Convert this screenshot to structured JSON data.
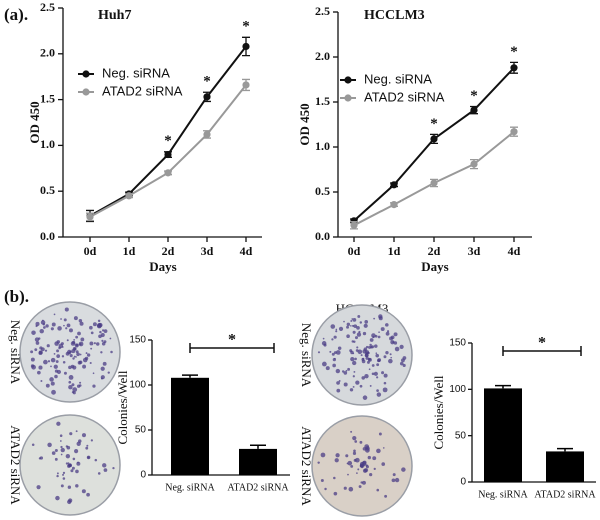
{
  "panel_labels": [
    "(a).",
    "(b)."
  ],
  "colony_plates": [
    {
      "title": "Huh7",
      "rows": [
        "Neg. siRNA",
        "ATAD2 siRNA"
      ]
    },
    {
      "title": "HCCLM3",
      "rows": [
        "Neg. siRNA",
        "ATAD2 siRNA"
      ]
    }
  ],
  "chart_data": [
    {
      "type": "line",
      "title": "Huh7",
      "x_label": "Days",
      "y_label": "OD 450",
      "categories": [
        "0d",
        "1d",
        "2d",
        "3d",
        "4d"
      ],
      "series": [
        {
          "name": "Neg. siRNA",
          "color": "#111111",
          "values": [
            0.23,
            0.47,
            0.9,
            1.53,
            2.08
          ],
          "errors": [
            0.06,
            0.02,
            0.03,
            0.05,
            0.1
          ]
        },
        {
          "name": "ATAD2 siRNA",
          "color": "#999999",
          "values": [
            0.22,
            0.45,
            0.7,
            1.12,
            1.66
          ],
          "errors": [
            0.04,
            0.02,
            0.02,
            0.04,
            0.06
          ]
        }
      ],
      "significance": [
        null,
        null,
        "*",
        "*",
        "*"
      ],
      "ylim": [
        0,
        2.5
      ],
      "yticks": [
        {
          "value": 0,
          "label": "0.0"
        },
        0.5,
        {
          "value": 1,
          "label": "1.0"
        },
        1.5,
        {
          "value": 2,
          "label": "2.0"
        },
        2.5
      ]
    },
    {
      "type": "line",
      "title": "HCCLM3",
      "x_label": "Days",
      "y_label": "OD 450",
      "categories": [
        "0d",
        "1d",
        "2d",
        "3d",
        "4d"
      ],
      "series": [
        {
          "name": "Neg. siRNA",
          "color": "#111111",
          "values": [
            0.18,
            0.58,
            1.09,
            1.41,
            1.88
          ],
          "errors": [
            0.02,
            0.02,
            0.05,
            0.04,
            0.06
          ]
        },
        {
          "name": "ATAD2 siRNA",
          "color": "#999999",
          "values": [
            0.13,
            0.36,
            0.6,
            0.81,
            1.17
          ],
          "errors": [
            0.04,
            0.02,
            0.04,
            0.05,
            0.05
          ]
        }
      ],
      "significance": [
        null,
        null,
        "*",
        "*",
        "*"
      ],
      "ylim": [
        0,
        2.5
      ],
      "yticks": [
        {
          "value": 0,
          "label": "0.0"
        },
        0.5,
        {
          "value": 1,
          "label": "1.0"
        },
        1.5,
        {
          "value": 2,
          "label": "2.0"
        },
        2.5
      ]
    },
    {
      "type": "bar",
      "y_label": "Colonies/Well",
      "color": "#000000",
      "categories": [
        "Neg. siRNA",
        "ATAD2 siRNA"
      ],
      "values": [
        108,
        29
      ],
      "errors": [
        3,
        4
      ],
      "significance": "*",
      "ylim": [
        0,
        150
      ],
      "yticks": [
        0,
        50,
        100,
        150
      ]
    },
    {
      "type": "bar",
      "y_label": "Colonies/Well",
      "color": "#000000",
      "categories": [
        "Neg. siRNA",
        "ATAD2 siRNA"
      ],
      "values": [
        101,
        33
      ],
      "errors": [
        3,
        3
      ],
      "significance": "*",
      "ylim": [
        0,
        150
      ],
      "yticks": [
        0,
        50,
        100,
        150
      ]
    }
  ]
}
